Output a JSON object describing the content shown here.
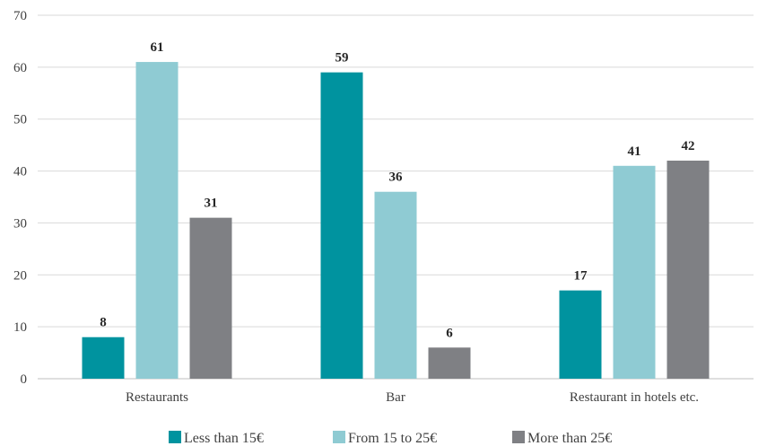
{
  "chart_data": {
    "type": "bar",
    "categories": [
      "Restaurants",
      "Bar",
      "Restaurant in hotels etc."
    ],
    "series": [
      {
        "name": "Less than 15€",
        "color": "#00939f",
        "values": [
          8,
          59,
          17
        ]
      },
      {
        "name": "From 15 to 25€",
        "color": "#8fcbd3",
        "values": [
          61,
          36,
          41
        ]
      },
      {
        "name": "More than 25€",
        "color": "#7f8084",
        "values": [
          31,
          6,
          42
        ]
      }
    ],
    "ylim": [
      0,
      70
    ],
    "yticks": [
      0,
      10,
      20,
      30,
      40,
      50,
      60,
      70
    ],
    "grid": true,
    "legend": "bottom",
    "title": "",
    "xlabel": "",
    "ylabel": ""
  }
}
